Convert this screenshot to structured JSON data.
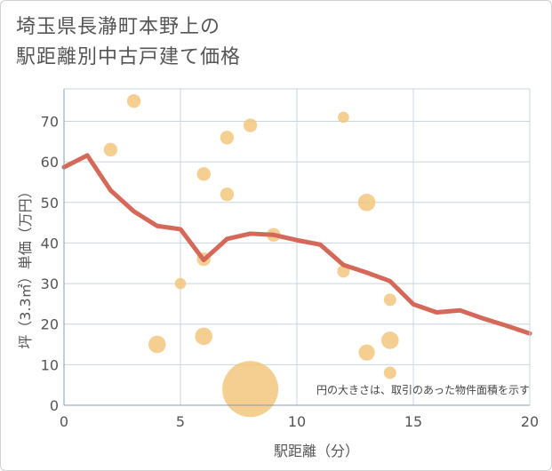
{
  "chart_data": {
    "type": "scatter",
    "title_lines": [
      "埼玉県長瀞町本野上の",
      "駅距離別中古戸建て価格"
    ],
    "xlabel": "駅距離（分）",
    "ylabel": "坪（3.3㎡）単価（万円）",
    "xlim": [
      0,
      20
    ],
    "ylim": [
      0,
      78
    ],
    "xticks": [
      0,
      5,
      10,
      15,
      20
    ],
    "yticks": [
      0,
      10,
      20,
      30,
      40,
      50,
      60,
      70
    ],
    "grid": true,
    "note": "円の大きさは、取引のあった物件面積を示す",
    "colors": {
      "bubble": "#f3c47a",
      "line": "#d4695a",
      "grid": "#c8d4e0",
      "plot_border": "#8c9aa8"
    },
    "bubbles": [
      {
        "x": 2,
        "y": 63,
        "size": 1.1
      },
      {
        "x": 3,
        "y": 75,
        "size": 1.1
      },
      {
        "x": 4,
        "y": 15,
        "size": 1.4
      },
      {
        "x": 5,
        "y": 30,
        "size": 0.9
      },
      {
        "x": 6,
        "y": 57,
        "size": 1.1
      },
      {
        "x": 6,
        "y": 36,
        "size": 1.1
      },
      {
        "x": 6,
        "y": 17,
        "size": 1.4
      },
      {
        "x": 7,
        "y": 66,
        "size": 1.1
      },
      {
        "x": 7,
        "y": 52,
        "size": 1.1
      },
      {
        "x": 8,
        "y": 69,
        "size": 1.1
      },
      {
        "x": 8,
        "y": 4,
        "size": 4.5
      },
      {
        "x": 9,
        "y": 42,
        "size": 1.1
      },
      {
        "x": 12,
        "y": 71,
        "size": 0.9
      },
      {
        "x": 12,
        "y": 33,
        "size": 1.0
      },
      {
        "x": 13,
        "y": 50,
        "size": 1.4
      },
      {
        "x": 13,
        "y": 13,
        "size": 1.3
      },
      {
        "x": 14,
        "y": 26,
        "size": 1.0
      },
      {
        "x": 14,
        "y": 16,
        "size": 1.4
      },
      {
        "x": 14,
        "y": 8,
        "size": 1.0
      }
    ],
    "trend_line": {
      "x": [
        0,
        1,
        2,
        3,
        4,
        5,
        6,
        7,
        8,
        9,
        10,
        11,
        12,
        13,
        14,
        15,
        16,
        17,
        18,
        19,
        20
      ],
      "y": [
        58.7,
        61.6,
        53,
        47.8,
        44.2,
        43.4,
        35.8,
        41,
        42.3,
        42,
        40.7,
        39.6,
        34.6,
        32.7,
        30.6,
        24.9,
        22.9,
        23.4,
        21.4,
        19.6,
        17.7
      ]
    }
  }
}
